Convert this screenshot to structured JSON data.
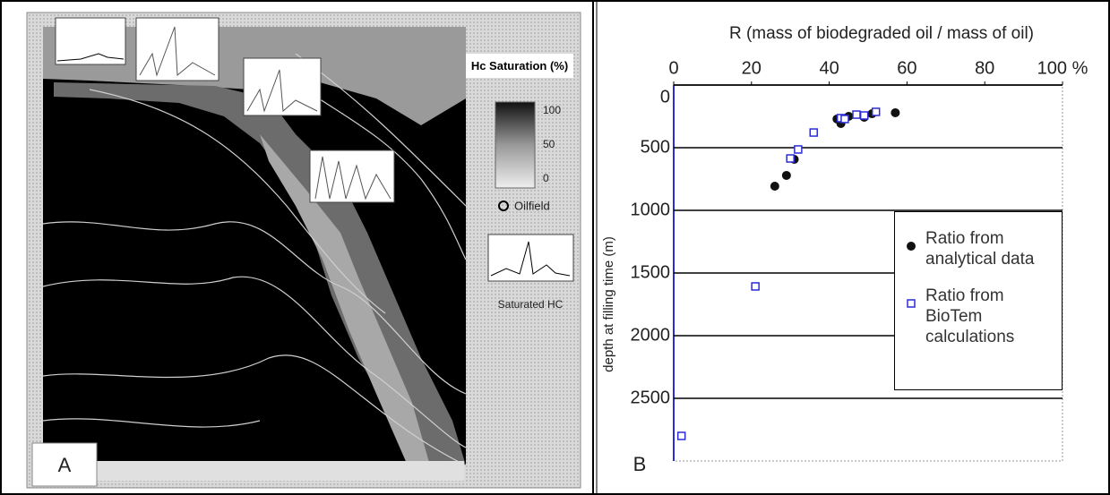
{
  "panel_a": {
    "label": "A",
    "legend_title": "Hc Saturation (%)",
    "colorbar_ticks": [
      100,
      50,
      0
    ],
    "oilfield": "Oilfield",
    "thumbnail_caption": "Saturated HC"
  },
  "chart_data": {
    "type": "scatter",
    "panel_label": "B",
    "x_label": "R (mass of biodegraded oil / mass of oil)",
    "y_label": "depth at filling time (m)",
    "xlim": [
      0,
      100
    ],
    "ylim": [
      0,
      3000
    ],
    "y_inverted": true,
    "x_axis_position": "top",
    "grid": true,
    "xticks": [
      0,
      20,
      40,
      60,
      80,
      {
        "value": 100,
        "label": "100 %"
      }
    ],
    "yticks": [
      0,
      500,
      1000,
      1500,
      2000,
      2500
    ],
    "legend_position": "right",
    "series": [
      {
        "name": "Ratio from analytical data",
        "color": "#111111",
        "marker": "circle",
        "x": [
          26,
          29,
          31,
          42,
          43,
          45,
          49,
          51,
          57
        ],
        "values": [
          807,
          721,
          593,
          271,
          307,
          250,
          257,
          229,
          221
        ]
      },
      {
        "name": "Ratio from BioTem calculations",
        "color": "#2b2bd6",
        "marker": "square",
        "x": [
          30,
          32,
          36,
          43,
          44,
          47,
          49,
          52,
          21,
          2
        ],
        "values": [
          586,
          514,
          379,
          264,
          271,
          236,
          243,
          214,
          1607,
          2800
        ]
      }
    ]
  }
}
